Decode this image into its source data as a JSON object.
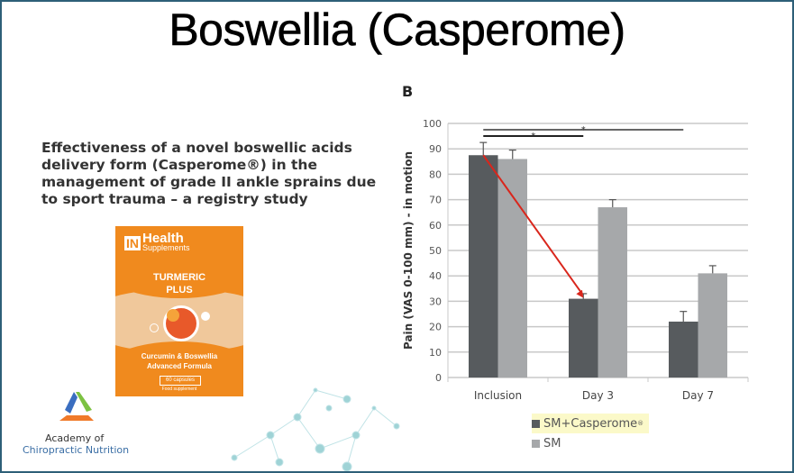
{
  "slide": {
    "title": "Boswellia (Casperome)",
    "study_title": "Effectiveness of a novel boswellic acids delivery form (Casperome®) in the management of grade II ankle sprains due to sport trauma – a registry study",
    "panel_label": "B"
  },
  "package": {
    "brand_in": "IN",
    "brand_health": "Health",
    "brand_supplements": "Supplements",
    "product_line1": "TURMERIC",
    "product_line2": "PLUS",
    "desc_line1": "Curcumin & Boswellia",
    "desc_line2": "Advanced Formula",
    "capsules": "60 capsules",
    "food": "Food supplement"
  },
  "logo": {
    "line1": "Academy of",
    "line2": "Chiropractic Nutrition"
  },
  "colors": {
    "frame": "#2d5f78",
    "series_dark": "#575b5e",
    "series_light": "#a6a8aa",
    "arrow": "#d9261c",
    "package_orange": "#f08a1e"
  },
  "chart_data": {
    "type": "bar",
    "title": "",
    "xlabel": "",
    "ylabel": "Pain (VAS 0-100 mm) - in motion",
    "ylim": [
      0,
      100
    ],
    "yticks": [
      "0",
      "10",
      "20",
      "30",
      "40",
      "50",
      "60",
      "70",
      "80",
      "90",
      "100"
    ],
    "grid": true,
    "categories": [
      "Inclusion",
      "Day 3",
      "Day 7"
    ],
    "series": [
      {
        "name": "SM+Casperome",
        "sup": "®",
        "values": [
          87.5,
          31,
          22
        ],
        "error_upper": [
          92.5,
          33,
          26
        ]
      },
      {
        "name": "SM",
        "values": [
          86,
          67,
          41
        ],
        "error_upper": [
          89.5,
          70,
          44
        ]
      }
    ],
    "significance": [
      {
        "from": "Inclusion",
        "to": "Day 7",
        "label": "*"
      },
      {
        "from": "Inclusion",
        "to": "Day 3",
        "label": "*"
      }
    ],
    "annotation": "red arrow from SM+Casperome Inclusion to SM+Casperome Day 3",
    "legend_position": "bottom"
  }
}
